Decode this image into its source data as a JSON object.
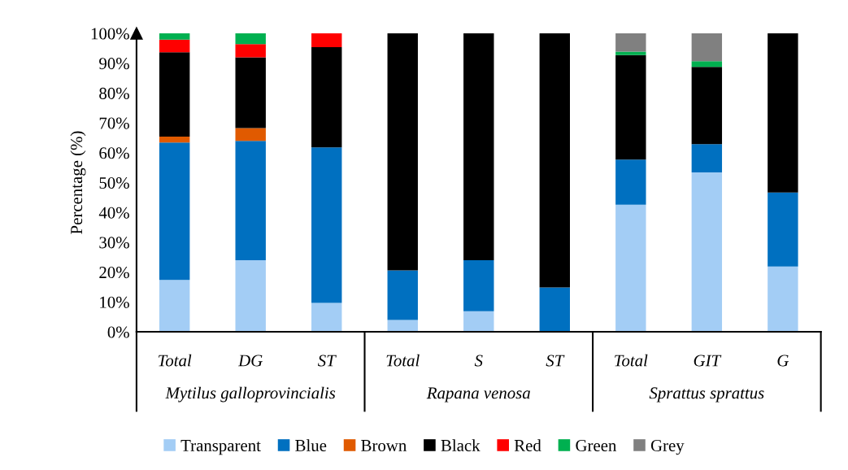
{
  "chart_data": {
    "type": "bar",
    "stacked": true,
    "ylabel": "Percentage (%)",
    "categories": [
      "Total",
      "DG",
      "ST",
      "Total",
      "S",
      "ST",
      "Total",
      "GIT",
      "G"
    ],
    "annotations": [
      "Mytilus galloprovincialis",
      "Rapana venosa",
      "Sprattus sprattus"
    ],
    "series": [
      {
        "name": "Transparent",
        "color": "#a3cdf5",
        "values": [
          17.4,
          24.0,
          9.7,
          4.0,
          6.9,
          0,
          42.6,
          53.4,
          21.9
        ]
      },
      {
        "name": "Blue",
        "color": "#0070c0",
        "values": [
          46.0,
          40.0,
          52.1,
          16.6,
          17.1,
          14.9,
          15.1,
          9.5,
          24.8
        ]
      },
      {
        "name": "Brown",
        "color": "#e05a00",
        "values": [
          2.0,
          4.3,
          0,
          0,
          0,
          0,
          0,
          0,
          0
        ]
      },
      {
        "name": "Black",
        "color": "#000000",
        "values": [
          28.3,
          23.7,
          33.6,
          79.4,
          76.0,
          85.1,
          35.0,
          25.9,
          53.3
        ]
      },
      {
        "name": "Red",
        "color": "#ff0000",
        "values": [
          4.2,
          4.4,
          4.6,
          0,
          0,
          0,
          0,
          0,
          0
        ]
      },
      {
        "name": "Green",
        "color": "#00b050",
        "values": [
          2.1,
          3.6,
          0,
          0,
          0,
          0,
          1.2,
          1.9,
          0
        ]
      },
      {
        "name": "Grey",
        "color": "#808080",
        "values": [
          0,
          0,
          0,
          0,
          0,
          0,
          6.1,
          9.3,
          0
        ]
      }
    ],
    "ylim": [
      0,
      100
    ],
    "yticks": [
      {
        "value": 0,
        "label": "0%"
      },
      {
        "value": 10,
        "label": "10%"
      },
      {
        "value": 20,
        "label": "20%"
      },
      {
        "value": 30,
        "label": "30%"
      },
      {
        "value": 40,
        "label": "40%"
      },
      {
        "value": 50,
        "label": "50%"
      },
      {
        "value": 60,
        "label": "60%"
      },
      {
        "value": 70,
        "label": "70%"
      },
      {
        "value": 80,
        "label": "80%"
      },
      {
        "value": 90,
        "label": "90%"
      },
      {
        "value": 100,
        "label": "100%"
      }
    ],
    "grid": false,
    "legend": "bottom"
  }
}
